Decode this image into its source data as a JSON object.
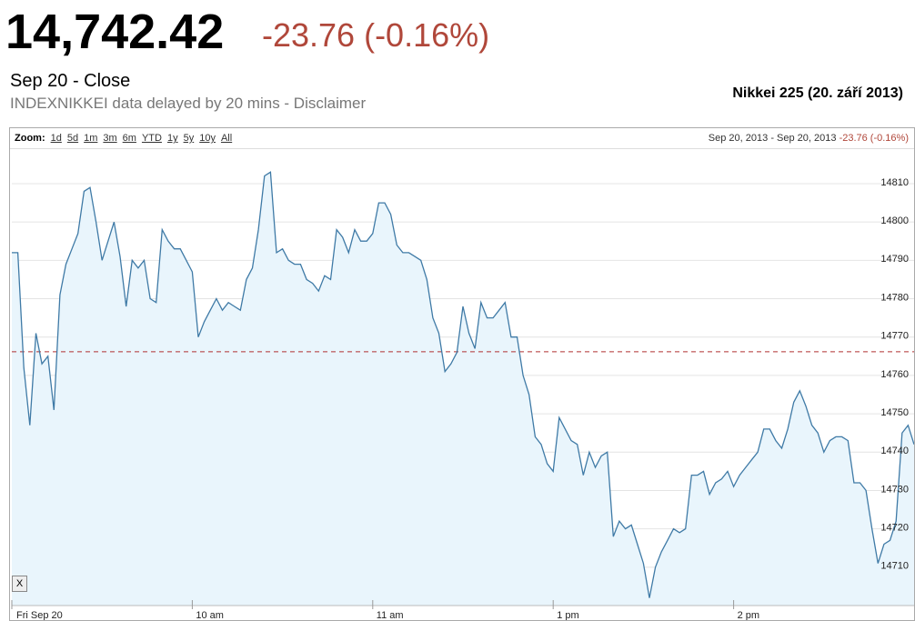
{
  "header": {
    "price": "14,742.42",
    "change": "-23.76 (-0.16%)",
    "status": "Sep 20 - Close",
    "note": "INDEXNIKKEI data delayed by 20 mins - Disclaimer",
    "chart_title": "Nikkei 225 (20. září 2013)"
  },
  "toolbar": {
    "zoom_label": "Zoom:",
    "ranges": [
      "1d",
      "5d",
      "1m",
      "3m",
      "6m",
      "YTD",
      "1y",
      "5y",
      "10y",
      "All"
    ],
    "start": "Sep 20, 2013",
    "separator": "-",
    "end": "Sep 20, 2013",
    "change": "-23.76 (-0.16%)",
    "close_button": "X"
  },
  "chart_data": {
    "type": "line",
    "color": "#3f7aa6",
    "fill": "#e9f5fc",
    "x": [
      0,
      2,
      4,
      6,
      8,
      10,
      12,
      14,
      16,
      18,
      20,
      22,
      24,
      26,
      28,
      30,
      32,
      34,
      36,
      38,
      40,
      42,
      44,
      46,
      48,
      50,
      52,
      54,
      56,
      58,
      60,
      62,
      64,
      66,
      68,
      70,
      72,
      74,
      76,
      78,
      80,
      82,
      84,
      86,
      88,
      90,
      92,
      94,
      96,
      98,
      100,
      102,
      104,
      106,
      108,
      110,
      112,
      114,
      116,
      118,
      120,
      122,
      124,
      126,
      128,
      130,
      132,
      134,
      136,
      138,
      140,
      142,
      144,
      146,
      148,
      150,
      152,
      154,
      156,
      158,
      160,
      162,
      164,
      166,
      168,
      170,
      172,
      174,
      176,
      178,
      180,
      182,
      184,
      186,
      188,
      190,
      192,
      194,
      196,
      198,
      200,
      202,
      204,
      206,
      208,
      210,
      212,
      214,
      216,
      218,
      220,
      222,
      224,
      226,
      228,
      230,
      232,
      234,
      236,
      238,
      240,
      242,
      244,
      246,
      248,
      250,
      252,
      254,
      256,
      258,
      260,
      262,
      264,
      266,
      268,
      270,
      272,
      274,
      276,
      278,
      280,
      282,
      284,
      286,
      288,
      290,
      292,
      294,
      296,
      298,
      300
    ],
    "values": [
      14792,
      14792,
      14762,
      14747,
      14771,
      14763,
      14765,
      14751,
      14781,
      14789,
      14793,
      14797,
      14808,
      14809,
      14800,
      14790,
      14795,
      14800,
      14791,
      14778,
      14790,
      14788,
      14790,
      14780,
      14779,
      14798,
      14795,
      14793,
      14793,
      14790,
      14787,
      14770,
      14774,
      14777,
      14780,
      14777,
      14779,
      14778,
      14777,
      14785,
      14788,
      14798,
      14812,
      14813,
      14792,
      14793,
      14790,
      14789,
      14789,
      14785,
      14784,
      14782,
      14786,
      14785,
      14798,
      14796,
      14792,
      14798,
      14795,
      14795,
      14797,
      14805,
      14805,
      14802,
      14794,
      14792,
      14792,
      14791,
      14790,
      14785,
      14775,
      14771,
      14761,
      14763,
      14766,
      14778,
      14771,
      14767,
      14779,
      14775,
      14775,
      14777,
      14779,
      14770,
      14770,
      14760,
      14755,
      14744,
      14742,
      14737,
      14735,
      14749,
      14746,
      14743,
      14742,
      14734,
      14740,
      14736,
      14739,
      14740,
      14718,
      14722,
      14720,
      14721,
      14716,
      14711,
      14702,
      14710,
      14714,
      14717,
      14720,
      14719,
      14720,
      14734,
      14734,
      14735,
      14729,
      14732,
      14733,
      14735,
      14731,
      14734,
      14736,
      14738,
      14740,
      14746,
      14746,
      14743,
      14741,
      14746,
      14753,
      14756,
      14752,
      14747,
      14745,
      14740,
      14743,
      14744,
      14744,
      14743,
      14732,
      14732,
      14730,
      14720,
      14711,
      14716,
      14717,
      14722,
      14745,
      14747,
      14742
    ],
    "previous_close": 14766.18,
    "previous_close_color": "#b03030",
    "xlim": [
      0,
      300
    ],
    "xticks": [
      {
        "value": 0,
        "label": "Fri Sep 20"
      },
      {
        "value": 60,
        "label": "10 am"
      },
      {
        "value": 120,
        "label": "11 am"
      },
      {
        "value": 180,
        "label": "1 pm"
      },
      {
        "value": 240,
        "label": "2 pm"
      }
    ],
    "ylim": [
      14700,
      14819
    ],
    "yticks": [
      14710,
      14720,
      14730,
      14740,
      14750,
      14760,
      14770,
      14780,
      14790,
      14800,
      14810
    ],
    "grid": true
  }
}
